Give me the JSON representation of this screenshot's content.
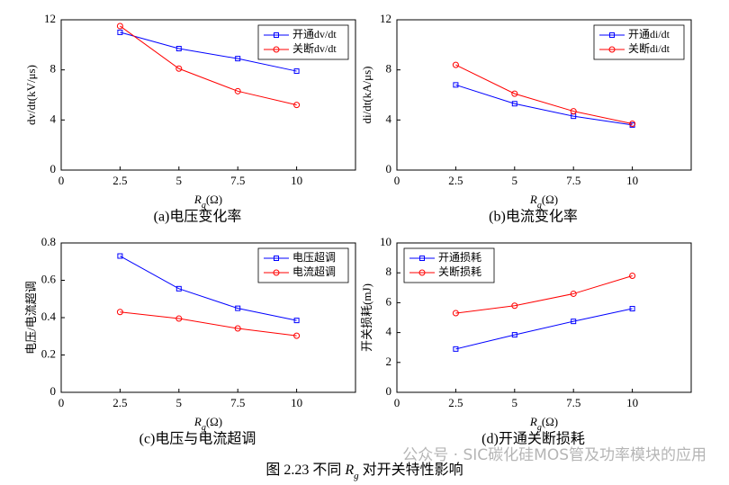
{
  "chart_data": [
    {
      "type": "line",
      "title": "(a)电压变化率",
      "xlabel": [
        "R",
        "g",
        "(Ω)"
      ],
      "ylabel": "dv/dt(kV/μs)",
      "x": [
        2.5,
        5,
        7.5,
        10
      ],
      "series": [
        {
          "name": "开通dv/dt",
          "color": "#0000ff",
          "marker": "square",
          "values": [
            11.0,
            9.7,
            8.9,
            7.9
          ]
        },
        {
          "name": "关断dv/dt",
          "color": "#ff0000",
          "marker": "circle",
          "values": [
            11.5,
            8.1,
            6.3,
            5.2
          ]
        }
      ],
      "xlim": [
        0,
        12.5
      ],
      "xticks": [
        0,
        2.5,
        5,
        7.5,
        10
      ],
      "ylim": [
        0,
        12
      ],
      "yticks": [
        0,
        4,
        8,
        12
      ],
      "legend": "upper right"
    },
    {
      "type": "line",
      "title": "(b)电流变化率",
      "xlabel": [
        "R",
        "g",
        "(Ω)"
      ],
      "ylabel": "di/dt(kA/μs)",
      "x": [
        2.5,
        5,
        7.5,
        10
      ],
      "series": [
        {
          "name": "开通di/dt",
          "color": "#0000ff",
          "marker": "square",
          "values": [
            6.8,
            5.3,
            4.3,
            3.6
          ]
        },
        {
          "name": "关断di/dt",
          "color": "#ff0000",
          "marker": "circle",
          "values": [
            8.4,
            6.1,
            4.7,
            3.7
          ]
        }
      ],
      "xlim": [
        0,
        12.5
      ],
      "xticks": [
        0,
        2.5,
        5,
        7.5,
        10
      ],
      "ylim": [
        0,
        12
      ],
      "yticks": [
        0,
        4,
        8,
        12
      ],
      "legend": "upper right"
    },
    {
      "type": "line",
      "title": "(c)电压与电流超调",
      "xlabel": [
        "R",
        "g",
        "(Ω)"
      ],
      "ylabel": "电压/电流超调",
      "x": [
        2.5,
        5,
        7.5,
        10
      ],
      "series": [
        {
          "name": "电压超调",
          "color": "#0000ff",
          "marker": "square",
          "values": [
            0.73,
            0.555,
            0.45,
            0.385
          ]
        },
        {
          "name": "电流超调",
          "color": "#ff0000",
          "marker": "circle",
          "values": [
            0.43,
            0.395,
            0.342,
            0.303
          ]
        }
      ],
      "xlim": [
        0,
        12.5
      ],
      "xticks": [
        0,
        2.5,
        5,
        7.5,
        10
      ],
      "ylim": [
        0,
        0.8
      ],
      "yticks": [
        0,
        0.2,
        0.4,
        0.6,
        0.8
      ],
      "legend": "upper right"
    },
    {
      "type": "line",
      "title": "(d)开通关断损耗",
      "xlabel": [
        "R",
        "g",
        "(Ω)"
      ],
      "ylabel": "开关损耗(mJ)",
      "x": [
        2.5,
        5,
        7.5,
        10
      ],
      "series": [
        {
          "name": "开通损耗",
          "color": "#0000ff",
          "marker": "square",
          "values": [
            2.9,
            3.85,
            4.75,
            5.6
          ]
        },
        {
          "name": "关断损耗",
          "color": "#ff0000",
          "marker": "circle",
          "values": [
            5.3,
            5.8,
            6.6,
            7.8
          ]
        }
      ],
      "xlim": [
        0,
        12.5
      ],
      "xticks": [
        0,
        2.5,
        5,
        7.5,
        10
      ],
      "ylim": [
        0,
        10
      ],
      "yticks": [
        0,
        2,
        4,
        6,
        8,
        10
      ],
      "legend": "upper left"
    }
  ],
  "figure_caption": [
    "图 2.23 不同 ",
    "R",
    "g",
    " 对开关特性影响"
  ],
  "watermark": "公众号 · SIC碳化硅MOS管及功率模块的应用"
}
